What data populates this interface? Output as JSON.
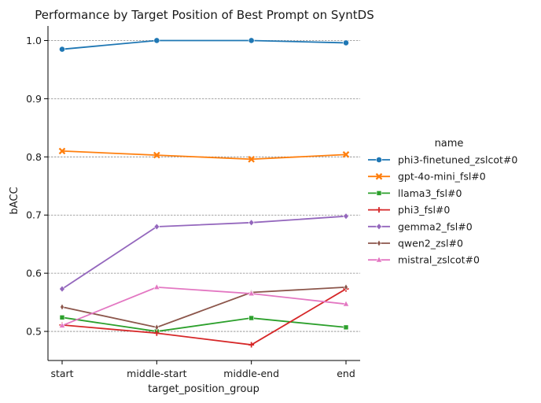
{
  "chart_data": {
    "type": "line",
    "title": "Performance by Target Position of  Best Prompt on SyntDS",
    "xlabel": "target_position_group",
    "ylabel": "bACC",
    "categories": [
      "start",
      "middle-start",
      "middle-end",
      "end"
    ],
    "ylim": [
      0.45,
      1.025
    ],
    "yticks": [
      0.5,
      0.6,
      0.7,
      0.8,
      0.9,
      1.0
    ],
    "ytick_labels": [
      "0.5",
      "0.6",
      "0.7",
      "0.8",
      "0.9",
      "1.0"
    ],
    "grid": "y-dashed",
    "legend": {
      "title": "name",
      "placement": "right",
      "entries": [
        "phi3-finetuned_zslcot#0",
        "gpt-4o-mini_fsl#0",
        "llama3_fsl#0",
        "phi3_fsl#0",
        "gemma2_fsl#0",
        "qwen2_zsl#0",
        "mistral_zslcot#0"
      ]
    },
    "series": [
      {
        "name": "phi3-finetuned_zslcot#0",
        "color": "#1f77b4",
        "marker": "circle",
        "values": [
          0.985,
          1.0,
          1.0,
          0.996
        ]
      },
      {
        "name": "gpt-4o-mini_fsl#0",
        "color": "#ff7f0e",
        "marker": "x",
        "values": [
          0.81,
          0.803,
          0.796,
          0.804
        ]
      },
      {
        "name": "llama3_fsl#0",
        "color": "#2ca02c",
        "marker": "square",
        "values": [
          0.524,
          0.5,
          0.523,
          0.507
        ]
      },
      {
        "name": "phi3_fsl#0",
        "color": "#d62728",
        "marker": "plus",
        "values": [
          0.511,
          0.497,
          0.477,
          0.573
        ]
      },
      {
        "name": "gemma2_fsl#0",
        "color": "#9467bd",
        "marker": "diamond",
        "values": [
          0.573,
          0.68,
          0.687,
          0.698
        ]
      },
      {
        "name": "qwen2_zsl#0",
        "color": "#8c564b",
        "marker": "thin-diamond",
        "values": [
          0.542,
          0.507,
          0.567,
          0.576
        ]
      },
      {
        "name": "mistral_zslcot#0",
        "color": "#e377c2",
        "marker": "triangle",
        "values": [
          0.51,
          0.576,
          0.565,
          0.547
        ]
      }
    ]
  }
}
